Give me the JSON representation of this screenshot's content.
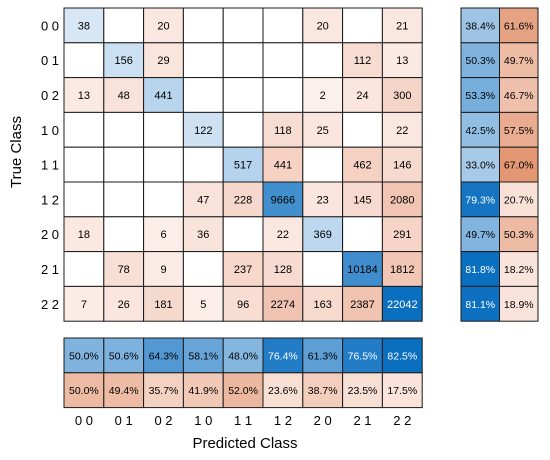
{
  "chart_data": {
    "type": "heatmap",
    "title": "",
    "xlabel": "Predicted Class",
    "ylabel": "True Class",
    "classes": [
      "0 0",
      "0 1",
      "0 2",
      "1 0",
      "1 1",
      "1 2",
      "2 0",
      "2 1",
      "2 2"
    ],
    "matrix": [
      [
        38,
        null,
        20,
        null,
        null,
        null,
        20,
        null,
        21
      ],
      [
        null,
        156,
        29,
        null,
        null,
        null,
        null,
        112,
        13
      ],
      [
        13,
        48,
        441,
        null,
        null,
        null,
        2,
        24,
        300
      ],
      [
        null,
        null,
        null,
        122,
        null,
        118,
        25,
        null,
        22
      ],
      [
        null,
        null,
        null,
        null,
        517,
        441,
        null,
        462,
        146
      ],
      [
        null,
        null,
        null,
        47,
        228,
        9666,
        23,
        145,
        2080
      ],
      [
        18,
        null,
        6,
        36,
        null,
        22,
        369,
        null,
        291
      ],
      [
        null,
        78,
        9,
        null,
        237,
        128,
        null,
        10184,
        1812
      ],
      [
        7,
        26,
        181,
        5,
        96,
        2274,
        163,
        2387,
        22042
      ]
    ],
    "row_summary": [
      [
        "38.4%",
        "61.6%"
      ],
      [
        "50.3%",
        "49.7%"
      ],
      [
        "53.3%",
        "46.7%"
      ],
      [
        "42.5%",
        "57.5%"
      ],
      [
        "33.0%",
        "67.0%"
      ],
      [
        "79.3%",
        "20.7%"
      ],
      [
        "49.7%",
        "50.3%"
      ],
      [
        "81.8%",
        "18.2%"
      ],
      [
        "81.1%",
        "18.9%"
      ]
    ],
    "column_summary": {
      "correct": [
        "50.0%",
        "50.6%",
        "64.3%",
        "58.1%",
        "48.0%",
        "76.4%",
        "61.3%",
        "76.5%",
        "82.5%"
      ],
      "incorrect": [
        "50.0%",
        "49.4%",
        "35.7%",
        "41.9%",
        "52.0%",
        "23.6%",
        "38.7%",
        "23.5%",
        "17.5%"
      ]
    },
    "colors": {
      "correct_light": "#deebf7",
      "correct_dark": "#0b6fc0",
      "incorrect_light": "#fbe9e2",
      "incorrect_dark": "#db7d50",
      "grid": "#1a1a1a",
      "text_dark": "#000000",
      "text_light": "#ffffff"
    }
  }
}
